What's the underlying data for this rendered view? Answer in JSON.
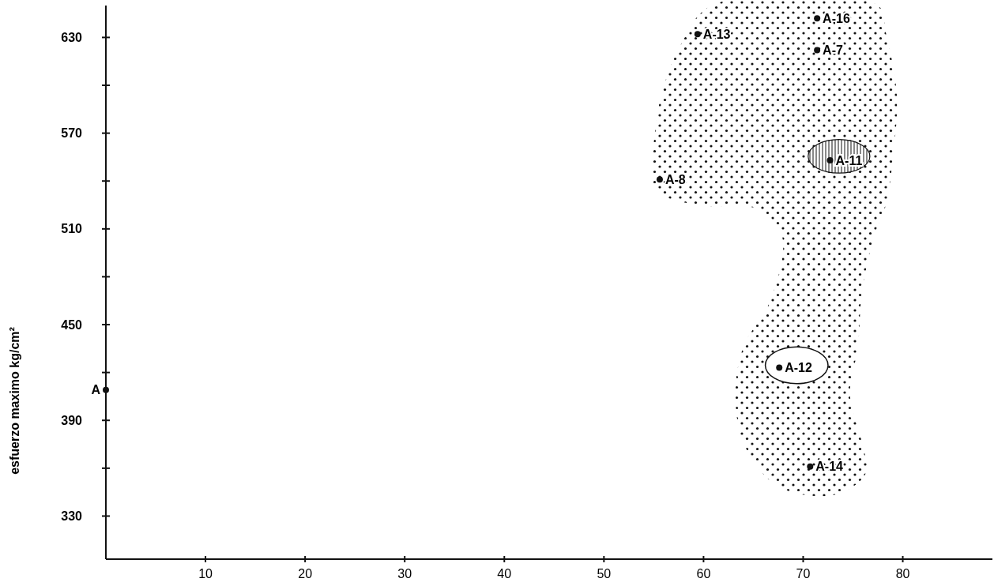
{
  "chart_data": {
    "type": "scatter",
    "ylabel": "esfuerzo maximo  kg/cm²",
    "xlim": [
      0,
      89
    ],
    "xticks": [
      10,
      20,
      30,
      40,
      50,
      60,
      70,
      80
    ],
    "ylim": [
      303,
      650
    ],
    "yticks": [
      330,
      {
        "value": 360,
        "label": null
      },
      390,
      {
        "value": 420,
        "label": null
      },
      450,
      {
        "value": 480,
        "label": null
      },
      510,
      {
        "value": 540,
        "label": null
      },
      570,
      {
        "value": 600,
        "label": null
      },
      630
    ],
    "marker": "circle",
    "x": [
      59.4,
      71.4,
      71.4,
      72.7,
      55.6,
      67.6,
      70.7,
      0
    ],
    "values": [
      632,
      642,
      622,
      553,
      541,
      423,
      361,
      409
    ],
    "value_labels": [
      "A-13",
      "A-16",
      "A-7",
      "A-11",
      "A-8",
      "A-12",
      "A-14",
      "A"
    ]
  }
}
